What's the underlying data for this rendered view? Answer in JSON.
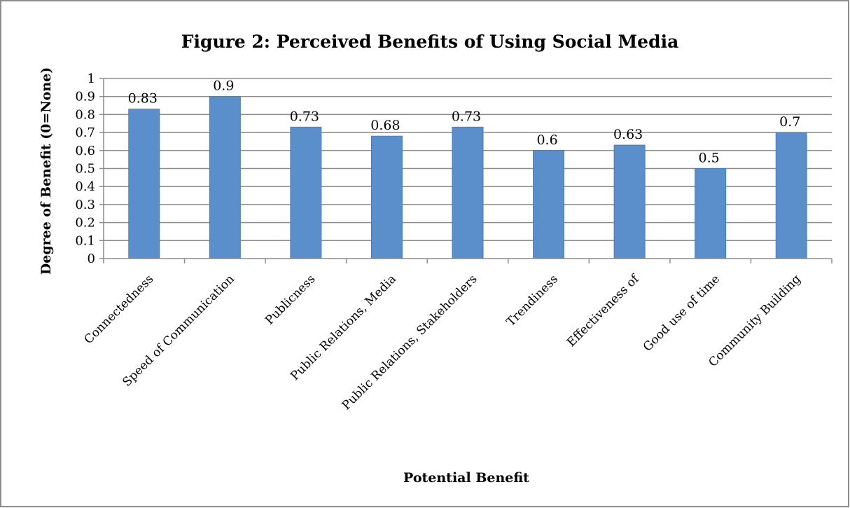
{
  "chart_data": {
    "type": "bar",
    "title": "Figure 2: Perceived Benefits of Using Social Media",
    "xlabel": "Potential Benefit",
    "ylabel": "Degree of Benefit (0=None)",
    "categories": [
      "Connectedness",
      "Speed of Communication",
      "Publicness",
      "Public Relations, Media",
      "Public Relations, Stakeholders",
      "Trendiness",
      "Effectiveness of",
      "Good use of time",
      "Community Building"
    ],
    "values": [
      0.83,
      0.9,
      0.73,
      0.68,
      0.73,
      0.6,
      0.63,
      0.5,
      0.7
    ],
    "data_labels": [
      "0.83",
      "0.9",
      "0.73",
      "0.68",
      "0.73",
      "0.6",
      "0.63",
      "0.5",
      "0.7"
    ],
    "ylim": [
      0,
      1
    ],
    "yticks": [
      "0",
      "0.1",
      "0.2",
      "0.3",
      "0.4",
      "0.5",
      "0.6",
      "0.7",
      "0.8",
      "0.9",
      "1"
    ],
    "grid": true,
    "legend": "none",
    "bar_color": "#5b8fcb"
  }
}
